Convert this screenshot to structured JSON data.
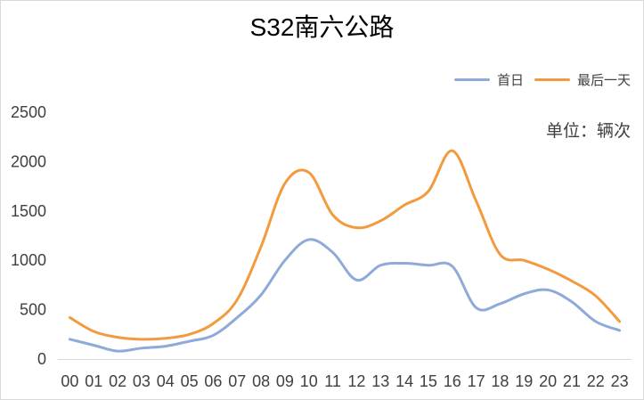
{
  "chart_data": {
    "type": "line",
    "title": "S32南六公路",
    "unit_text": "单位：辆次",
    "xlabel": "",
    "ylabel": "",
    "categories": [
      "00",
      "01",
      "02",
      "03",
      "04",
      "05",
      "06",
      "07",
      "08",
      "09",
      "10",
      "11",
      "12",
      "13",
      "14",
      "15",
      "16",
      "17",
      "18",
      "19",
      "20",
      "21",
      "22",
      "23"
    ],
    "ylim": [
      0,
      2500
    ],
    "yticks": [
      "2500",
      "2000",
      "1500",
      "1000",
      "500",
      "0"
    ],
    "grid": false,
    "legend_position": "top-right",
    "series": [
      {
        "name": "首日",
        "color": "#8eaad8",
        "values": [
          200,
          140,
          80,
          110,
          130,
          180,
          240,
          420,
          650,
          1000,
          1210,
          1080,
          800,
          950,
          970,
          950,
          940,
          520,
          560,
          660,
          700,
          580,
          380,
          290
        ]
      },
      {
        "name": "最后一天",
        "color": "#f39a3e",
        "values": [
          420,
          280,
          220,
          200,
          210,
          250,
          360,
          600,
          1140,
          1780,
          1890,
          1460,
          1330,
          1400,
          1560,
          1700,
          2110,
          1600,
          1060,
          1000,
          910,
          790,
          640,
          380
        ]
      }
    ]
  }
}
